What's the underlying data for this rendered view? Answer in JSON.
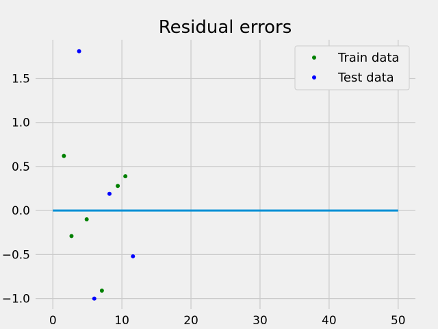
{
  "chart_data": {
    "type": "scatter",
    "title": "Residual errors",
    "xlabel": "",
    "ylabel": "",
    "xlim": [
      -2.5,
      52.5
    ],
    "ylim": [
      -1.12,
      1.94
    ],
    "x_ticks": [
      0,
      10,
      20,
      30,
      40,
      50
    ],
    "x_tick_labels": [
      "0",
      "10",
      "20",
      "30",
      "40",
      "50"
    ],
    "y_ticks": [
      -1.0,
      -0.5,
      0.0,
      0.5,
      1.0,
      1.5
    ],
    "y_tick_labels": [
      "−1.0",
      "−0.5",
      "0.0",
      "0.5",
      "1.0",
      "1.5"
    ],
    "grid": true,
    "legend_position": "top-right",
    "series": [
      {
        "name": "Train data",
        "color": "#008000",
        "points": [
          {
            "x": 1.6,
            "y": 0.62
          },
          {
            "x": 2.7,
            "y": -0.29
          },
          {
            "x": 4.9,
            "y": -0.1
          },
          {
            "x": 7.1,
            "y": -0.91
          },
          {
            "x": 9.4,
            "y": 0.28
          },
          {
            "x": 10.5,
            "y": 0.39
          }
        ]
      },
      {
        "name": "Test data",
        "color": "#0000ff",
        "points": [
          {
            "x": 3.8,
            "y": 1.81
          },
          {
            "x": 6.0,
            "y": -1.0
          },
          {
            "x": 8.2,
            "y": 0.19
          },
          {
            "x": 11.6,
            "y": -0.52
          }
        ]
      }
    ],
    "reference_line": {
      "y": 0.0,
      "x_start": 0,
      "x_end": 50,
      "color": "#008fd5"
    }
  }
}
